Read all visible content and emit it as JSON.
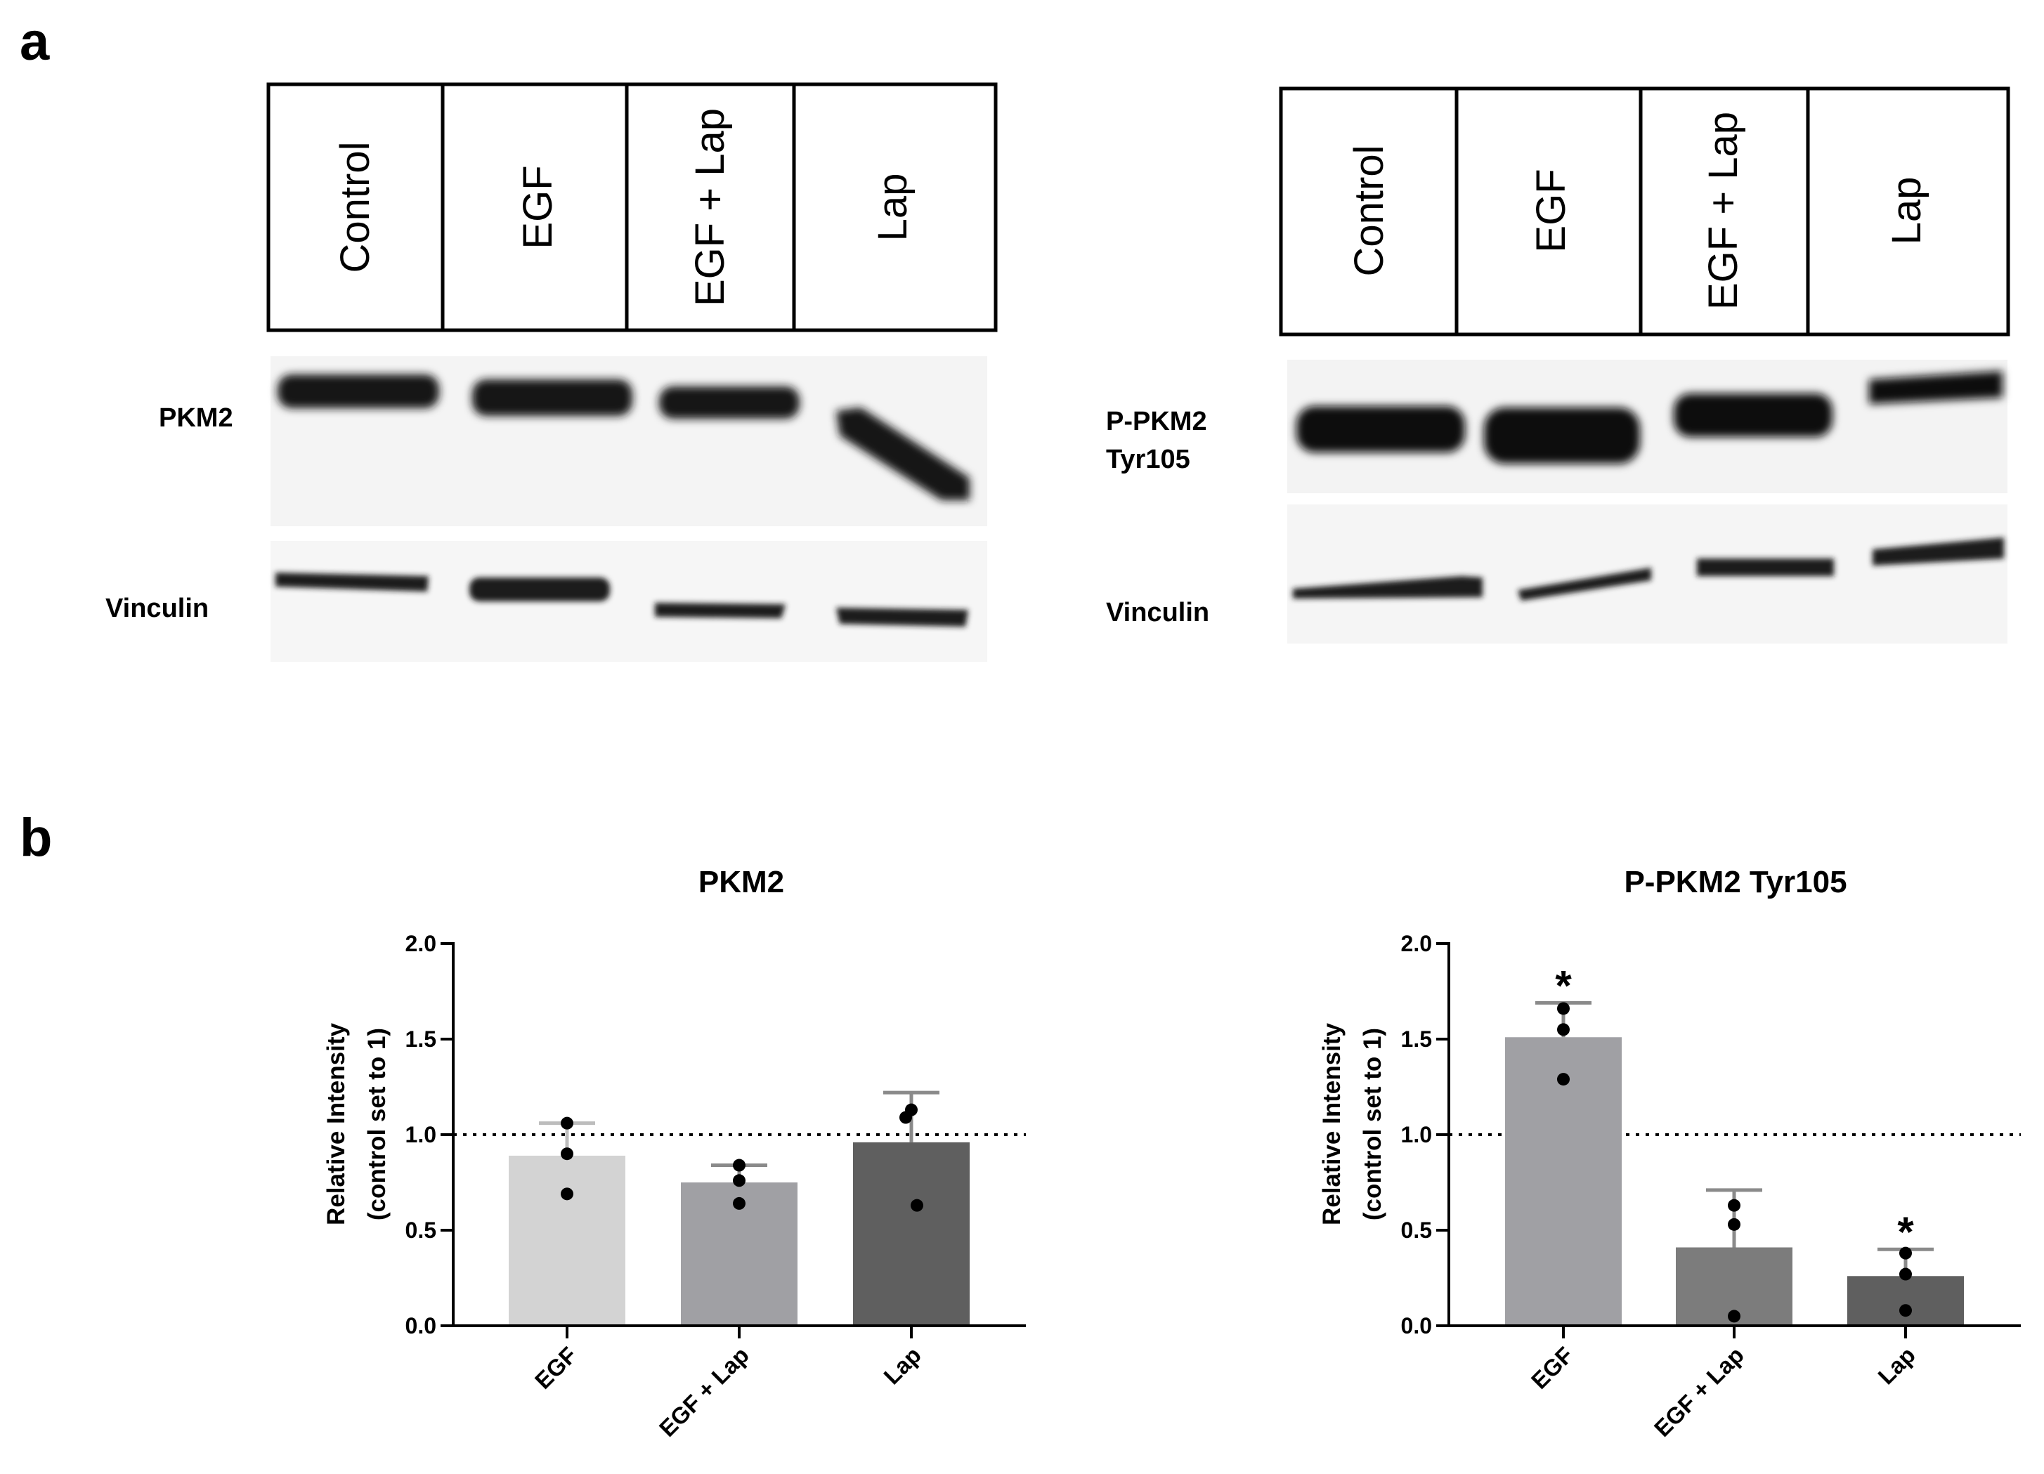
{
  "panel_a": {
    "letter": "a",
    "left_blot": {
      "lanes": [
        "Control",
        "EGF",
        "EGF + Lap",
        "Lap"
      ],
      "rows": [
        "PKM2",
        "Vinculin"
      ]
    },
    "right_blot": {
      "lanes": [
        "Control",
        "EGF",
        "EGF + Lap",
        "Lap"
      ],
      "rows": [
        "P-PKM2",
        "Tyr105",
        "Vinculin"
      ]
    }
  },
  "panel_b": {
    "letter": "b"
  },
  "chart_data": [
    {
      "type": "bar",
      "title": "PKM2",
      "ylabel": [
        "Relative Intensity",
        "(control set to 1)"
      ],
      "xlabel": "",
      "categories": [
        "EGF",
        "EGF + Lap",
        "Lap"
      ],
      "values": [
        0.89,
        0.75,
        0.96
      ],
      "error_upper": [
        1.06,
        0.84,
        1.22
      ],
      "points": [
        [
          1.06,
          0.9,
          0.69
        ],
        [
          0.84,
          0.76,
          0.64
        ],
        [
          1.13,
          1.09,
          0.63
        ]
      ],
      "significance": [
        "",
        "",
        ""
      ],
      "ylim": [
        0,
        2.0
      ],
      "yticks": [
        "0.0",
        "0.5",
        "1.0",
        "1.5",
        "2.0"
      ],
      "reference_line": 1.0,
      "bar_colors": [
        "#d3d3d3",
        "#a0a0a4",
        "#5f5f5f"
      ],
      "grid": false
    },
    {
      "type": "bar",
      "title": "P-PKM2 Tyr105",
      "ylabel": [
        "Relative Intensity",
        "(control set to 1)"
      ],
      "xlabel": "",
      "categories": [
        "EGF",
        "EGF + Lap",
        "Lap"
      ],
      "values": [
        1.51,
        0.41,
        0.26
      ],
      "error_upper": [
        1.69,
        0.71,
        0.4
      ],
      "points": [
        [
          1.66,
          1.55,
          1.29
        ],
        [
          0.63,
          0.53,
          0.05
        ],
        [
          0.38,
          0.27,
          0.08
        ]
      ],
      "significance": [
        "*",
        "",
        "*"
      ],
      "ylim": [
        0,
        2.0
      ],
      "yticks": [
        "0.0",
        "0.5",
        "1.0",
        "1.5",
        "2.0"
      ],
      "reference_line": 1.0,
      "bar_colors": [
        "#a0a0a4",
        "#7c7c7c",
        "#5f5f5f"
      ],
      "grid": false
    }
  ]
}
